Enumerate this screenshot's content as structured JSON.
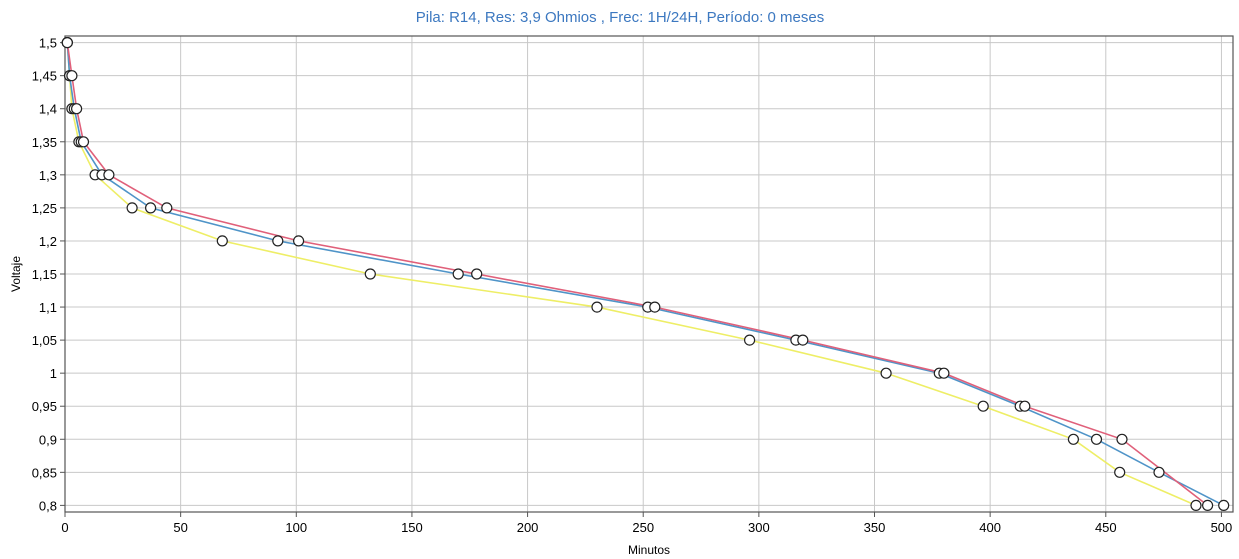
{
  "chart_data": {
    "type": "line",
    "title": "Pila: R14, Res: 3,9 Ohmios , Frec: 1H/24H, Período: 0 meses",
    "xlabel": "Minutos",
    "ylabel": "Voltaje",
    "xlim": [
      0,
      505
    ],
    "ylim": [
      0.79,
      1.51
    ],
    "xticks": [
      0,
      50,
      100,
      150,
      200,
      250,
      300,
      350,
      400,
      450,
      500
    ],
    "xtick_labels": [
      "0",
      "50",
      "100",
      "150",
      "200",
      "250",
      "300",
      "350",
      "400",
      "450",
      "500"
    ],
    "yticks": [
      0.8,
      0.85,
      0.9,
      0.95,
      1.0,
      1.05,
      1.1,
      1.15,
      1.2,
      1.25,
      1.3,
      1.35,
      1.4,
      1.45,
      1.5
    ],
    "ytick_labels": [
      "0,8",
      "0,85",
      "0,9",
      "0,95",
      "1",
      "1,05",
      "1,1",
      "1,15",
      "1,2",
      "1,25",
      "1,3",
      "1,35",
      "1,4",
      "1,45",
      "1,5"
    ],
    "grid": true,
    "series": [
      {
        "color": "#e0607a",
        "x": [
          1,
          3,
          5,
          8,
          19,
          44,
          101,
          178,
          255,
          319,
          380,
          415,
          457,
          494
        ],
        "y": [
          1.5,
          1.45,
          1.4,
          1.35,
          1.3,
          1.25,
          1.2,
          1.15,
          1.1,
          1.05,
          1.0,
          0.95,
          0.9,
          0.8
        ]
      },
      {
        "color": "#4f94c8",
        "x": [
          1,
          2,
          4,
          7,
          16,
          37,
          92,
          170,
          252,
          316,
          378,
          413,
          446,
          473,
          501
        ],
        "y": [
          1.5,
          1.45,
          1.4,
          1.35,
          1.3,
          1.25,
          1.2,
          1.15,
          1.1,
          1.05,
          1.0,
          0.95,
          0.9,
          0.85,
          0.8
        ]
      },
      {
        "color": "#eeee66",
        "x": [
          1,
          2,
          3,
          6,
          13,
          29,
          68,
          132,
          230,
          296,
          355,
          397,
          436,
          456,
          489
        ],
        "y": [
          1.5,
          1.45,
          1.4,
          1.35,
          1.3,
          1.25,
          1.2,
          1.15,
          1.1,
          1.05,
          1.0,
          0.95,
          0.9,
          0.85,
          0.8
        ]
      }
    ]
  }
}
